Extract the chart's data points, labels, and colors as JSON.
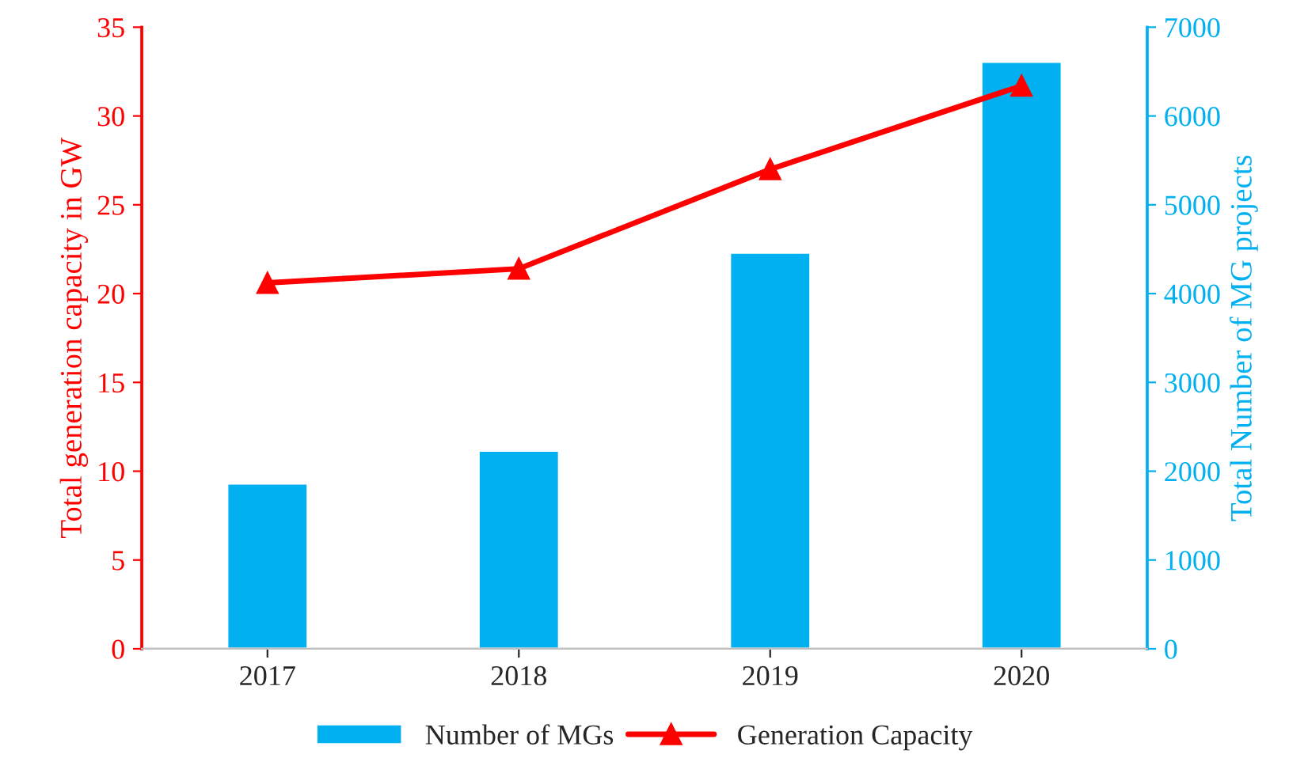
{
  "chart_data": {
    "type": "bar",
    "categories": [
      "2017",
      "2018",
      "2019",
      "2020"
    ],
    "series": [
      {
        "name": "Number of MGs",
        "axis": "y2",
        "color": "#00b0f0",
        "values": [
          1860,
          2230,
          4460,
          6610
        ]
      },
      {
        "name": "Generation Capacity",
        "type": "line",
        "axis": "y",
        "color": "#ff0000",
        "values": [
          20.6,
          21.4,
          27.0,
          31.7
        ]
      }
    ],
    "ylabel": "Total generation capacity in GW",
    "y2label": "Total Number of MG projects",
    "ylim": [
      0,
      35
    ],
    "yticks": [
      0,
      5,
      10,
      15,
      20,
      25,
      30,
      35
    ],
    "y2lim": [
      0,
      7000
    ],
    "y2ticks": [
      0,
      1000,
      2000,
      3000,
      4000,
      5000,
      6000,
      7000
    ],
    "marker": "triangle",
    "legend": "bottom",
    "grid": false
  }
}
